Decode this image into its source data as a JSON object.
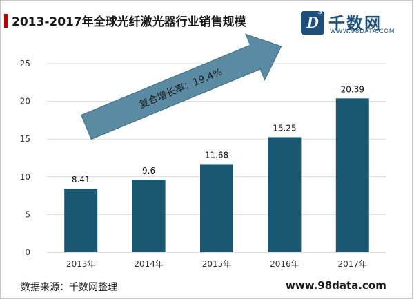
{
  "header": {
    "title": "2013-2017年全球光纤激光器行业销售规模"
  },
  "logo": {
    "badge": "D",
    "badge_sup": "3",
    "name": "千数网",
    "url": "WWW.98DATA.COM"
  },
  "footer": {
    "source": "数据来源：千数网整理",
    "website": "www.98data.com"
  },
  "colors": {
    "bar": "#1a5872",
    "arrow_fill": "#5b8ba2",
    "arrow_stroke": "#3d6d85",
    "title_accent": "#c00000",
    "brand": "#1d4f7a"
  },
  "chart_data": {
    "type": "bar",
    "title": "2013-2017年全球光纤激光器行业销售规模",
    "categories": [
      "2013年",
      "2014年",
      "2015年",
      "2016年",
      "2017年"
    ],
    "values": [
      8.41,
      9.6,
      11.68,
      15.25,
      20.39
    ],
    "value_labels": [
      "8.41",
      "9.6",
      "11.68",
      "15.25",
      "20.39"
    ],
    "ylim": [
      0,
      25
    ],
    "yticks": [
      0,
      5,
      10,
      15,
      20,
      25
    ],
    "grid": true,
    "xlabel": "",
    "ylabel": "",
    "annotation": "复合增长率：19.4%"
  }
}
